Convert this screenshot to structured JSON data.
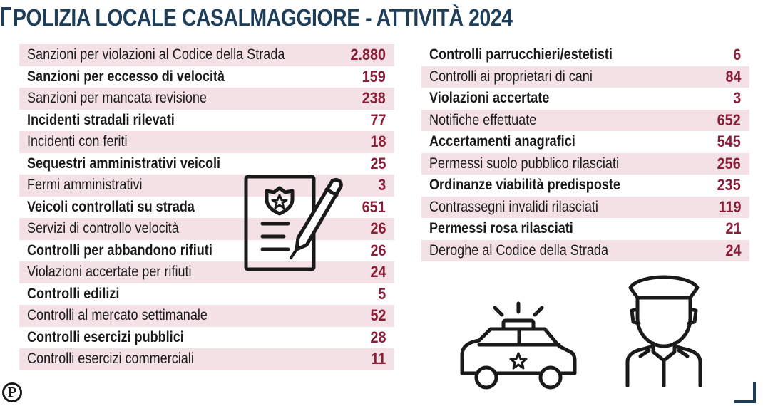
{
  "title": "POLIZIA LOCALE CASALMAGGIORE - ATTIVITÀ 2024",
  "logo_letter": "P",
  "left_rows": [
    {
      "label": "Sanzioni per violazioni al Codice della Strada",
      "value": "2.880"
    },
    {
      "label": "Sanzioni per eccesso di velocità",
      "value": "159"
    },
    {
      "label": "Sanzioni per mancata revisione",
      "value": "238"
    },
    {
      "label": "Incidenti stradali rilevati",
      "value": "77"
    },
    {
      "label": "Incidenti con feriti",
      "value": "18"
    },
    {
      "label": "Sequestri amministrativi veicoli",
      "value": "25"
    },
    {
      "label": "Fermi amministrativi",
      "value": "3"
    },
    {
      "label": "Veicoli controllati su strada",
      "value": "651"
    },
    {
      "label": "Servizi di controllo velocità",
      "value": "26"
    },
    {
      "label": "Controlli per abbandono rifiuti",
      "value": "26"
    },
    {
      "label": "Violazioni accertate per rifiuti",
      "value": "24"
    },
    {
      "label": "Controlli edilizi",
      "value": "5"
    },
    {
      "label": "Controlli al mercato settimanale",
      "value": "52"
    },
    {
      "label": "Controlli esercizi pubblici",
      "value": "28"
    },
    {
      "label": "Controlli esercizi commerciali",
      "value": "11"
    }
  ],
  "right_rows": [
    {
      "label": "Controlli parrucchieri/estetisti",
      "value": "6"
    },
    {
      "label": "Controlli ai proprietari di cani",
      "value": "84"
    },
    {
      "label": "Violazioni accertate",
      "value": "3"
    },
    {
      "label": "Notifiche effettuate",
      "value": "652"
    },
    {
      "label": "Accertamenti anagrafici",
      "value": "545"
    },
    {
      "label": "Permessi suolo pubblico rilasciati",
      "value": "256"
    },
    {
      "label": "Ordinanze viabilità predisposte",
      "value": "235"
    },
    {
      "label": "Contrassegni invalidi rilasciati",
      "value": "119"
    },
    {
      "label": "Permessi rosa rilasciati",
      "value": "21"
    },
    {
      "label": "Deroghe al Codice della Strada",
      "value": "24"
    }
  ],
  "colors": {
    "accent": "#1e3d59",
    "value": "#8a1d37",
    "shade": "#f4e1e5"
  },
  "icons": [
    "document-badge-pen-icon",
    "police-car-icon",
    "police-officer-icon"
  ]
}
